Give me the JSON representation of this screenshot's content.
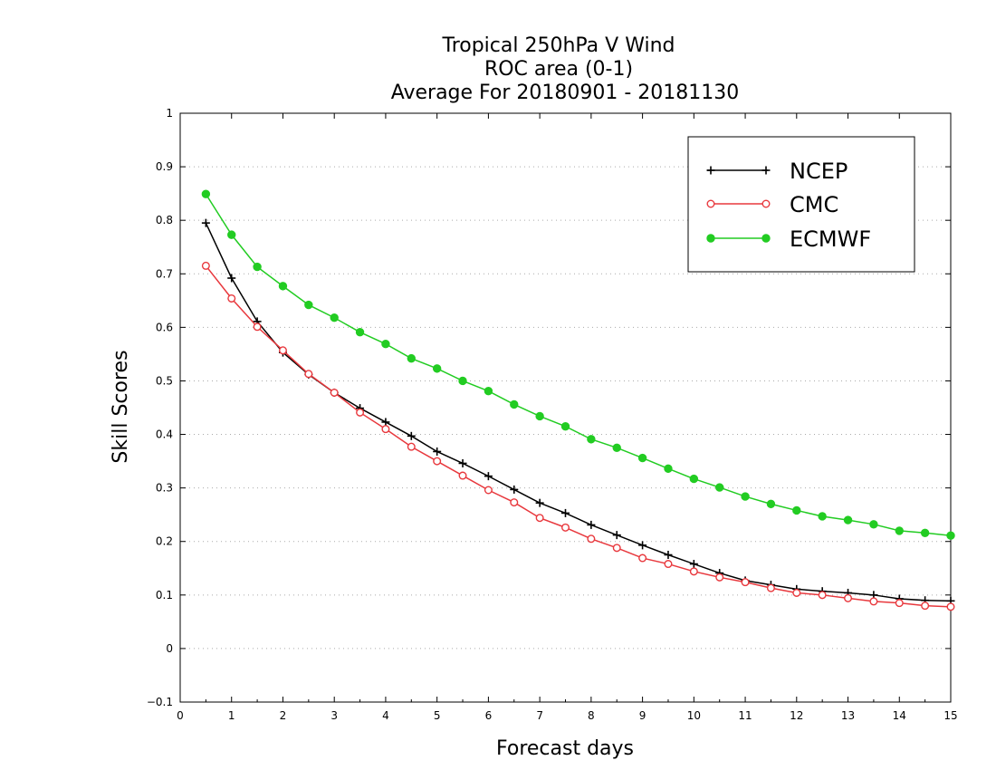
{
  "chart_data": {
    "type": "line",
    "title": [
      "Tropical 250hPa V Wind",
      "ROC area (0-1)",
      "Average For 20180901 - 20181130"
    ],
    "xlabel": "Forecast days",
    "ylabel": "Skill Scores",
    "xlim": [
      0,
      15
    ],
    "ylim": [
      -0.1,
      1
    ],
    "xticks": [
      "0",
      "1",
      "2",
      "3",
      "4",
      "5",
      "6",
      "7",
      "8",
      "9",
      "10",
      "11",
      "12",
      "13",
      "14",
      "15"
    ],
    "yticks": [
      "−0.1",
      "0",
      "0.1",
      "0.2",
      "0.3",
      "0.4",
      "0.5",
      "0.6",
      "0.7",
      "0.8",
      "0.9",
      "1"
    ],
    "grid": "dotted-horizontal",
    "legend": "top-right",
    "x": [
      0.5,
      1,
      1.5,
      2,
      2.5,
      3,
      3.5,
      4,
      4.5,
      5,
      5.5,
      6,
      6.5,
      7,
      7.5,
      8,
      8.5,
      9,
      9.5,
      10,
      10.5,
      11,
      11.5,
      12,
      12.5,
      13,
      13.5,
      14,
      14.5,
      15
    ],
    "series": [
      {
        "name": "NCEP",
        "color": "#000000",
        "marker": "plus",
        "values": [
          0.795,
          0.692,
          0.611,
          0.553,
          0.512,
          0.478,
          0.449,
          0.423,
          0.397,
          0.368,
          0.346,
          0.322,
          0.297,
          0.272,
          0.253,
          0.231,
          0.212,
          0.193,
          0.175,
          0.158,
          0.141,
          0.127,
          0.119,
          0.111,
          0.107,
          0.104,
          0.1,
          0.093,
          0.09,
          0.089
        ]
      },
      {
        "name": "CMC",
        "color": "#e8383d",
        "marker": "open-circle",
        "values": [
          0.715,
          0.654,
          0.601,
          0.557,
          0.513,
          0.478,
          0.441,
          0.41,
          0.377,
          0.35,
          0.323,
          0.296,
          0.273,
          0.244,
          0.226,
          0.205,
          0.188,
          0.169,
          0.158,
          0.144,
          0.133,
          0.124,
          0.113,
          0.104,
          0.1,
          0.094,
          0.088,
          0.085,
          0.08,
          0.078
        ]
      },
      {
        "name": "ECMWF",
        "color": "#22cc22",
        "marker": "filled-circle",
        "values": [
          0.849,
          0.773,
          0.713,
          0.677,
          0.642,
          0.618,
          0.591,
          0.569,
          0.542,
          0.523,
          0.5,
          0.481,
          0.456,
          0.434,
          0.415,
          0.391,
          0.375,
          0.356,
          0.336,
          0.317,
          0.301,
          0.284,
          0.27,
          0.258,
          0.247,
          0.24,
          0.232,
          0.22,
          0.216,
          0.211
        ]
      }
    ]
  }
}
